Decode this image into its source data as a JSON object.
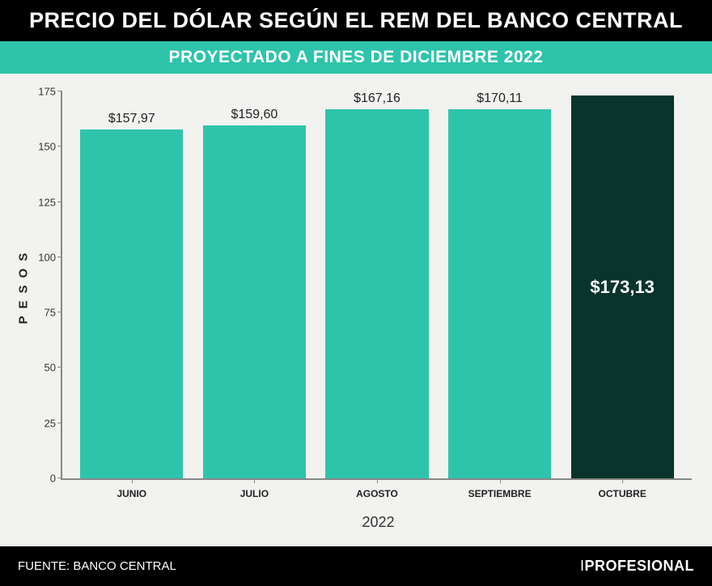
{
  "header": {
    "title": "PRECIO DEL DÓLAR SEGÚN EL REM DEL BANCO CENTRAL",
    "subtitle": "PROYECTADO A FINES DE DICIEMBRE 2022"
  },
  "chart": {
    "type": "bar",
    "ylabel": "PESOS",
    "ylim": [
      0,
      175
    ],
    "ytick_step": 25,
    "yticks": [
      0,
      25,
      50,
      75,
      100,
      125,
      150,
      175
    ],
    "axis_color": "#888888",
    "background_color": "#f2f2f0",
    "xaxis_year": "2022",
    "categories": [
      "JUNIO",
      "JULIO",
      "AGOSTO",
      "SEPTIEMBRE",
      "OCTUBRE"
    ],
    "values": [
      157.97,
      159.6,
      167.16,
      170.11,
      173.13
    ],
    "value_labels": [
      "$157,97",
      "$159,60",
      "$167,16",
      "$170,11",
      "$173,13"
    ],
    "label_position": [
      "top",
      "top",
      "top",
      "top",
      "inside"
    ],
    "bar_colors": [
      "#2ec4ab",
      "#2ec4ab",
      "#2ec4ab",
      "#2ec4ab",
      "#08342b"
    ],
    "category_fontsize": 12,
    "label_fontsize": 16,
    "ylabel_fontsize": 15
  },
  "footer": {
    "source": "FUENTE: BANCO CENTRAL",
    "brand_light": "I",
    "brand_bold": "PROFESIONAL"
  }
}
